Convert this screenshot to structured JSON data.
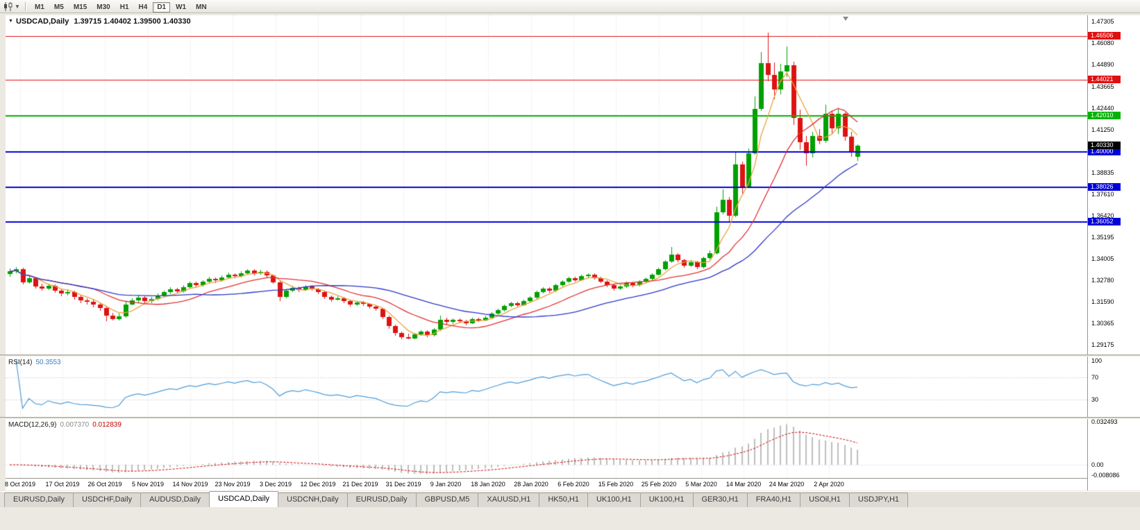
{
  "toolbar": {
    "timeframes": [
      "M1",
      "M5",
      "M15",
      "M30",
      "H1",
      "H4",
      "D1",
      "W1",
      "MN"
    ],
    "active_timeframe": "D1"
  },
  "chart": {
    "symbol_title": "USDCAD,Daily",
    "ohlc_text": "1.39715 1.40402 1.39500 1.40330"
  },
  "price_axis": {
    "scale_top": 1.47305,
    "scale_bottom": 1.29175,
    "labels": [
      "1.47305",
      "1.46080",
      "1.44890",
      "1.43665",
      "1.42440",
      "1.41250",
      "1.40025",
      "1.38835",
      "1.37610",
      "1.36420",
      "1.35195",
      "1.34005",
      "1.32780",
      "1.31590",
      "1.30365",
      "1.29175"
    ]
  },
  "line_levels": [
    {
      "label": "1.46506",
      "price": 1.46506,
      "color": "#E01010",
      "width": 1
    },
    {
      "label": "1.44021",
      "price": 1.44021,
      "color": "#E01010",
      "width": 1
    },
    {
      "label": "1.42010",
      "price": 1.4201,
      "color": "#00B400",
      "width": 2
    },
    {
      "label": "1.40000",
      "price": 1.4,
      "color": "#0000D8",
      "width": 2
    },
    {
      "label": "1.38026",
      "price": 1.38026,
      "color": "#0000D8",
      "width": 2
    },
    {
      "label": "1.36052",
      "price": 1.36052,
      "color": "#0000D8",
      "width": 2
    }
  ],
  "current_price_badge": {
    "label": "1.40330",
    "price": 1.4033,
    "bg": "#000000"
  },
  "rsi_panel": {
    "name": "RSI(14)",
    "value": "50.3553",
    "period": 14,
    "line_color": "#4C9BD8",
    "levels": [
      70,
      30
    ],
    "scale_labels": [
      {
        "text": "100",
        "value": 100
      },
      {
        "text": "70",
        "value": 70
      },
      {
        "text": "30",
        "value": 30
      }
    ]
  },
  "macd_panel": {
    "name": "MACD(12,26,9)",
    "value_main": "0.007370",
    "value_signal": "0.012839",
    "params": [
      12,
      26,
      9
    ],
    "histogram_color": "#BDBDBD",
    "signal_color": "#CC0000",
    "scale_labels": [
      {
        "text": "0.032493",
        "value": 0.032493
      },
      {
        "text": "0.00",
        "value": 0
      },
      {
        "text": "-0.008086",
        "value": -0.008086
      }
    ]
  },
  "time_axis": {
    "labels": [
      "8 Oct 2019",
      "17 Oct 2019",
      "26 Oct 2019",
      "5 Nov 2019",
      "14 Nov 2019",
      "23 Nov 2019",
      "3 Dec 2019",
      "12 Dec 2019",
      "21 Dec 2019",
      "31 Dec 2019",
      "9 Jan 2020",
      "18 Jan 2020",
      "28 Jan 2020",
      "6 Feb 2020",
      "15 Feb 2020",
      "25 Feb 2020",
      "5 Mar 2020",
      "14 Mar 2020",
      "24 Mar 2020",
      "2 Apr 2020"
    ]
  },
  "tabs": {
    "active_index": 3,
    "items": [
      "EURUSD,Daily",
      "USDCHF,Daily",
      "AUDUSD,Daily",
      "USDCAD,Daily",
      "USDCNH,Daily",
      "EURUSD,Daily",
      "GBPUSD,M5",
      "XAUUSD,H1",
      "HK50,H1",
      "UK100,H1",
      "UK100,H1",
      "GER30,H1",
      "FRA40,H1",
      "USOil,H1",
      "USDJPY,H1"
    ]
  },
  "chart_data": {
    "type": "candlestick",
    "symbol": "USDCAD",
    "timeframe": "Daily",
    "last_bar": {
      "open": 1.39715,
      "high": 1.40402,
      "low": 1.395,
      "close": 1.4033
    },
    "candle_up_color": "#00A000",
    "candle_down_color": "#DE1212",
    "moving_averages": [
      {
        "period": 5,
        "color": "#E8A33D"
      },
      {
        "period": 14,
        "color": "#E03030"
      },
      {
        "period": 30,
        "color": "#2B35C8"
      }
    ],
    "ohlc": [
      [
        1.3315,
        1.3345,
        1.33,
        1.3328
      ],
      [
        1.3328,
        1.3352,
        1.3318,
        1.334
      ],
      [
        1.334,
        1.335,
        1.3255,
        1.3268
      ],
      [
        1.3268,
        1.3302,
        1.3258,
        1.329
      ],
      [
        1.329,
        1.3296,
        1.3232,
        1.3245
      ],
      [
        1.3245,
        1.3258,
        1.322,
        1.3232
      ],
      [
        1.3232,
        1.326,
        1.3225,
        1.3248
      ],
      [
        1.3248,
        1.3255,
        1.321,
        1.3222
      ],
      [
        1.3222,
        1.3232,
        1.319,
        1.3205
      ],
      [
        1.3205,
        1.3228,
        1.3195,
        1.3215
      ],
      [
        1.3215,
        1.3222,
        1.3172,
        1.3185
      ],
      [
        1.3185,
        1.3196,
        1.3152,
        1.3165
      ],
      [
        1.3165,
        1.318,
        1.3145,
        1.3158
      ],
      [
        1.3158,
        1.317,
        1.3128,
        1.3142
      ],
      [
        1.3142,
        1.315,
        1.311,
        1.3125
      ],
      [
        1.3125,
        1.3132,
        1.3048,
        1.308
      ],
      [
        1.308,
        1.3096,
        1.3052,
        1.3062
      ],
      [
        1.3062,
        1.3092,
        1.3055,
        1.3078
      ],
      [
        1.3078,
        1.3158,
        1.307,
        1.3145
      ],
      [
        1.3145,
        1.318,
        1.3138,
        1.3168
      ],
      [
        1.3168,
        1.3195,
        1.3155,
        1.3182
      ],
      [
        1.3182,
        1.319,
        1.315,
        1.3162
      ],
      [
        1.3162,
        1.3186,
        1.3152,
        1.3175
      ],
      [
        1.3175,
        1.3205,
        1.3165,
        1.3192
      ],
      [
        1.3192,
        1.3222,
        1.3185,
        1.3212
      ],
      [
        1.3212,
        1.324,
        1.3202,
        1.3228
      ],
      [
        1.3228,
        1.3238,
        1.3205,
        1.3218
      ],
      [
        1.3218,
        1.3252,
        1.321,
        1.3242
      ],
      [
        1.3242,
        1.3272,
        1.3235,
        1.3262
      ],
      [
        1.3262,
        1.327,
        1.324,
        1.3252
      ],
      [
        1.3252,
        1.328,
        1.3245,
        1.3272
      ],
      [
        1.3272,
        1.3298,
        1.3262,
        1.3288
      ],
      [
        1.3288,
        1.3295,
        1.3265,
        1.3278
      ],
      [
        1.3278,
        1.3305,
        1.327,
        1.3295
      ],
      [
        1.3295,
        1.3322,
        1.3288,
        1.3312
      ],
      [
        1.3312,
        1.332,
        1.3292,
        1.3302
      ],
      [
        1.3302,
        1.333,
        1.3295,
        1.332
      ],
      [
        1.332,
        1.3342,
        1.3312,
        1.3332
      ],
      [
        1.3332,
        1.334,
        1.3308,
        1.3318
      ],
      [
        1.3318,
        1.3336,
        1.331,
        1.3326
      ],
      [
        1.3326,
        1.3334,
        1.3295,
        1.3305
      ],
      [
        1.3305,
        1.3312,
        1.3258,
        1.3268
      ],
      [
        1.3268,
        1.3275,
        1.3162,
        1.3185
      ],
      [
        1.3185,
        1.323,
        1.3178,
        1.3222
      ],
      [
        1.3222,
        1.3248,
        1.3215,
        1.3238
      ],
      [
        1.3238,
        1.3246,
        1.3215,
        1.3226
      ],
      [
        1.3226,
        1.3254,
        1.322,
        1.3246
      ],
      [
        1.3246,
        1.3252,
        1.3222,
        1.323
      ],
      [
        1.323,
        1.3238,
        1.32,
        1.3212
      ],
      [
        1.3212,
        1.322,
        1.3175,
        1.3185
      ],
      [
        1.3185,
        1.3195,
        1.316,
        1.3172
      ],
      [
        1.3172,
        1.3188,
        1.3165,
        1.3178
      ],
      [
        1.3178,
        1.3185,
        1.3152,
        1.3162
      ],
      [
        1.3162,
        1.317,
        1.3132,
        1.3142
      ],
      [
        1.3142,
        1.3162,
        1.3135,
        1.3156
      ],
      [
        1.3156,
        1.3164,
        1.3136,
        1.3146
      ],
      [
        1.3146,
        1.3152,
        1.312,
        1.313
      ],
      [
        1.313,
        1.314,
        1.3108,
        1.3118
      ],
      [
        1.3118,
        1.3124,
        1.3062,
        1.3075
      ],
      [
        1.3075,
        1.3082,
        1.3008,
        1.3022
      ],
      [
        1.3022,
        1.303,
        1.2968,
        1.2982
      ],
      [
        1.2982,
        1.2992,
        1.295,
        1.2962
      ],
      [
        1.2962,
        1.2978,
        1.2948,
        1.2953
      ],
      [
        1.2953,
        1.2985,
        1.2948,
        1.2976
      ],
      [
        1.2976,
        1.3,
        1.2968,
        1.299
      ],
      [
        1.299,
        1.2998,
        1.296,
        1.2972
      ],
      [
        1.2972,
        1.301,
        1.2965,
        1.3002
      ],
      [
        1.3002,
        1.3082,
        1.2996,
        1.3058
      ],
      [
        1.3058,
        1.3068,
        1.3032,
        1.3045
      ],
      [
        1.3045,
        1.3065,
        1.3036,
        1.3056
      ],
      [
        1.3056,
        1.3064,
        1.3038,
        1.3048
      ],
      [
        1.3048,
        1.3058,
        1.3028,
        1.304
      ],
      [
        1.304,
        1.307,
        1.3034,
        1.3062
      ],
      [
        1.3062,
        1.307,
        1.3044,
        1.3054
      ],
      [
        1.3054,
        1.308,
        1.3048,
        1.307
      ],
      [
        1.307,
        1.31,
        1.3062,
        1.3092
      ],
      [
        1.3092,
        1.312,
        1.3085,
        1.3112
      ],
      [
        1.3112,
        1.3145,
        1.3105,
        1.3136
      ],
      [
        1.3136,
        1.316,
        1.3128,
        1.3152
      ],
      [
        1.3152,
        1.3158,
        1.313,
        1.3141
      ],
      [
        1.3141,
        1.317,
        1.3134,
        1.3162
      ],
      [
        1.3162,
        1.319,
        1.3155,
        1.3182
      ],
      [
        1.3182,
        1.322,
        1.3175,
        1.3212
      ],
      [
        1.3212,
        1.324,
        1.3205,
        1.3232
      ],
      [
        1.3232,
        1.324,
        1.321,
        1.3221
      ],
      [
        1.3221,
        1.326,
        1.3214,
        1.3252
      ],
      [
        1.3252,
        1.328,
        1.3245,
        1.3272
      ],
      [
        1.3272,
        1.33,
        1.3265,
        1.3292
      ],
      [
        1.3292,
        1.33,
        1.327,
        1.3281
      ],
      [
        1.3281,
        1.331,
        1.3274,
        1.3302
      ],
      [
        1.3302,
        1.332,
        1.3292,
        1.3312
      ],
      [
        1.3312,
        1.332,
        1.3282,
        1.3291
      ],
      [
        1.3291,
        1.3298,
        1.3262,
        1.3272
      ],
      [
        1.3272,
        1.328,
        1.3242,
        1.3252
      ],
      [
        1.3252,
        1.326,
        1.3222,
        1.3231
      ],
      [
        1.3231,
        1.3254,
        1.3224,
        1.3246
      ],
      [
        1.3246,
        1.327,
        1.3238,
        1.3262
      ],
      [
        1.3262,
        1.327,
        1.3242,
        1.3251
      ],
      [
        1.3251,
        1.328,
        1.3244,
        1.3272
      ],
      [
        1.3272,
        1.3295,
        1.3265,
        1.3286
      ],
      [
        1.3286,
        1.332,
        1.328,
        1.3312
      ],
      [
        1.3312,
        1.335,
        1.3305,
        1.3342
      ],
      [
        1.3342,
        1.3392,
        1.3335,
        1.3385
      ],
      [
        1.3385,
        1.3465,
        1.3378,
        1.3422
      ],
      [
        1.3422,
        1.343,
        1.338,
        1.3392
      ],
      [
        1.3392,
        1.34,
        1.335,
        1.3362
      ],
      [
        1.3362,
        1.3392,
        1.3352,
        1.3382
      ],
      [
        1.3382,
        1.339,
        1.334,
        1.3352
      ],
      [
        1.3352,
        1.3412,
        1.3345,
        1.3402
      ],
      [
        1.3402,
        1.3445,
        1.3395,
        1.3432
      ],
      [
        1.3432,
        1.369,
        1.3425,
        1.3662
      ],
      [
        1.3662,
        1.379,
        1.3648,
        1.3732
      ],
      [
        1.3732,
        1.3748,
        1.3605,
        1.3642
      ],
      [
        1.3642,
        1.3998,
        1.3635,
        1.393
      ],
      [
        1.393,
        1.3945,
        1.3765,
        1.3802
      ],
      [
        1.3802,
        1.402,
        1.3795,
        1.3992
      ],
      [
        1.3992,
        1.431,
        1.3982,
        1.4242
      ],
      [
        1.4242,
        1.456,
        1.423,
        1.4496
      ],
      [
        1.4496,
        1.4668,
        1.4395,
        1.4432
      ],
      [
        1.4432,
        1.4502,
        1.4295,
        1.435
      ],
      [
        1.435,
        1.4492,
        1.4322,
        1.4452
      ],
      [
        1.4452,
        1.459,
        1.442,
        1.4486
      ],
      [
        1.4486,
        1.4505,
        1.415,
        1.4188
      ],
      [
        1.4188,
        1.4238,
        1.4012,
        1.4052
      ],
      [
        1.4052,
        1.409,
        1.3922,
        1.3992
      ],
      [
        1.3992,
        1.411,
        1.3968,
        1.409
      ],
      [
        1.409,
        1.4128,
        1.4042,
        1.4062
      ],
      [
        1.4062,
        1.4265,
        1.405,
        1.4212
      ],
      [
        1.4212,
        1.4228,
        1.4105,
        1.4132
      ],
      [
        1.4132,
        1.4245,
        1.41,
        1.4212
      ],
      [
        1.4212,
        1.4222,
        1.406,
        1.4085
      ],
      [
        1.4085,
        1.411,
        1.397,
        1.4002
      ],
      [
        1.39715,
        1.40402,
        1.395,
        1.4033
      ]
    ]
  }
}
